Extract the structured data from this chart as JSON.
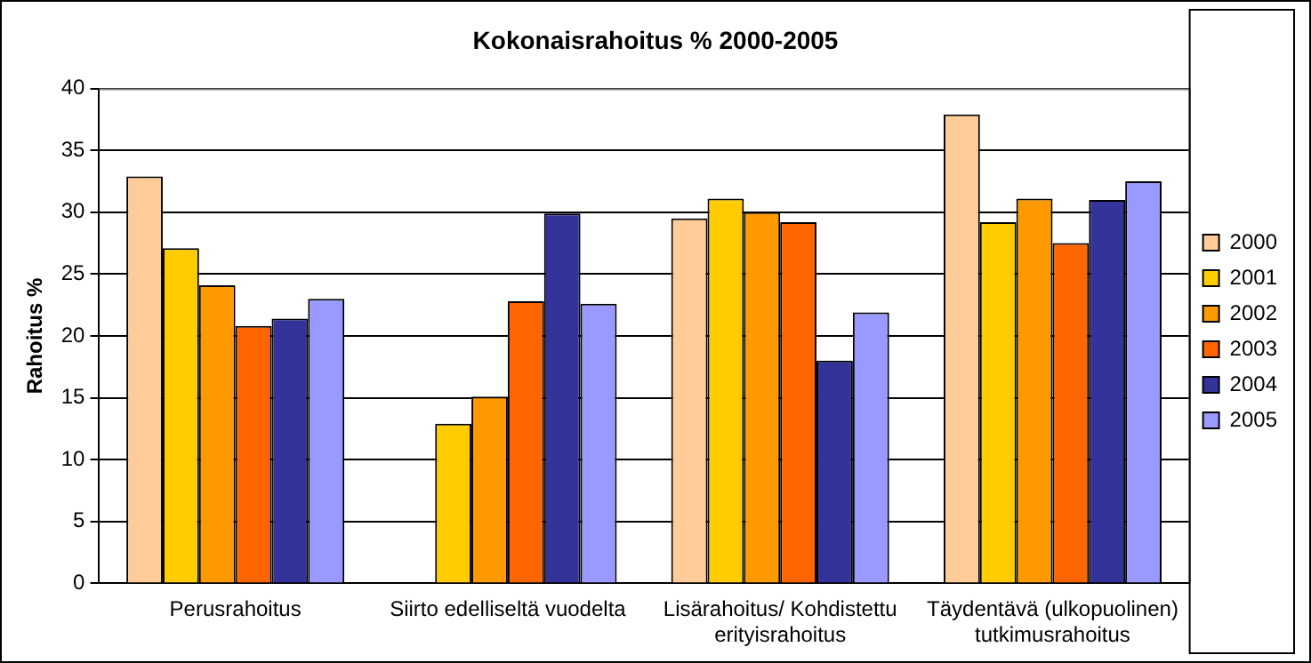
{
  "chart_data": {
    "type": "bar",
    "title": "Kokonaisrahoitus % 2000-2005",
    "ylabel": "Rahoitus %",
    "categories": [
      "Perusrahoitus",
      "Siirto edelliseltä vuodelta",
      "Lisärahoitus/ Kohdistettu erityisrahoitus",
      "Täydentävä (ulkopuolinen) tutkimusrahoitus"
    ],
    "series": [
      {
        "name": "2000",
        "color": "#ffcc99",
        "values": [
          32.9,
          null,
          29.5,
          37.9
        ]
      },
      {
        "name": "2001",
        "color": "#ffcc00",
        "values": [
          27.1,
          12.9,
          31.1,
          29.2
        ]
      },
      {
        "name": "2002",
        "color": "#ff9900",
        "values": [
          24.1,
          15.1,
          30,
          31.1
        ]
      },
      {
        "name": "2003",
        "color": "#ff6600",
        "values": [
          20.8,
          22.8,
          29.2,
          27.5
        ]
      },
      {
        "name": "2004",
        "color": "#333399",
        "values": [
          21.4,
          29.9,
          18,
          31
        ]
      },
      {
        "name": "2005",
        "color": "#9999ff",
        "values": [
          23,
          22.6,
          21.9,
          32.5
        ]
      }
    ],
    "ylim": [
      0,
      40
    ],
    "yticks": [
      0,
      5,
      10,
      15,
      20,
      25,
      30,
      35,
      40
    ],
    "grid": "y",
    "legend": "right"
  }
}
